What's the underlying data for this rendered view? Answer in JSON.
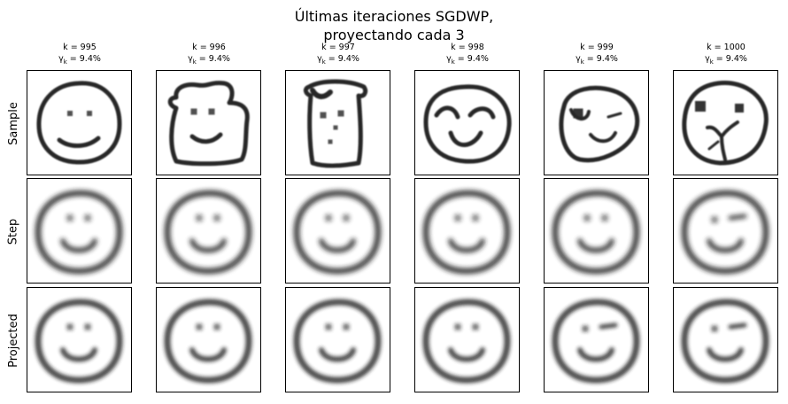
{
  "title": {
    "line1": "Últimas iteraciones SGDWP,",
    "line2": "proyectando cada 3"
  },
  "columns": [
    {
      "k": "k = 995",
      "gamma": "γ",
      "gamma_sub": "k",
      "gamma_val": " = 9.4%"
    },
    {
      "k": "k = 996",
      "gamma": "γ",
      "gamma_sub": "k",
      "gamma_val": " = 9.4%"
    },
    {
      "k": "k = 997",
      "gamma": "γ",
      "gamma_sub": "k",
      "gamma_val": " = 9.4%"
    },
    {
      "k": "k = 998",
      "gamma": "γ",
      "gamma_sub": "k",
      "gamma_val": " = 9.4%"
    },
    {
      "k": "k = 999",
      "gamma": "γ",
      "gamma_sub": "k",
      "gamma_val": " = 9.4%"
    },
    {
      "k": "k = 1000",
      "gamma": "γ",
      "gamma_sub": "k",
      "gamma_val": " = 9.4%"
    }
  ],
  "rows": [
    "Sample",
    "Step",
    "Projected"
  ],
  "colors": {
    "ink": "#1a1a1a",
    "frame": "#000000",
    "background": "#ffffff"
  }
}
